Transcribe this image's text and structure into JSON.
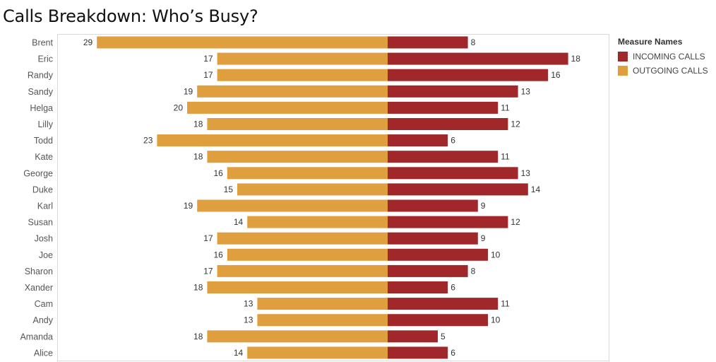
{
  "chart_data": {
    "type": "bar",
    "orientation": "diverging-horizontal",
    "title": "Calls Breakdown: Who’s Busy?",
    "categories": [
      "Brent",
      "Eric",
      "Randy",
      "Sandy",
      "Helga",
      "Lilly",
      "Todd",
      "Kate",
      "George",
      "Duke",
      "Karl",
      "Susan",
      "Josh",
      "Joe",
      "Sharon",
      "Xander",
      "Cam",
      "Andy",
      "Amanda",
      "Alice"
    ],
    "series": [
      {
        "name": "INCOMING CALLS",
        "color": "#a0282a",
        "values": [
          8,
          18,
          16,
          13,
          11,
          12,
          6,
          11,
          13,
          14,
          9,
          12,
          9,
          10,
          8,
          6,
          11,
          10,
          5,
          6
        ]
      },
      {
        "name": "OUTGOING CALLS",
        "color": "#e09f3e",
        "values": [
          29,
          17,
          17,
          19,
          20,
          18,
          23,
          18,
          16,
          15,
          19,
          14,
          17,
          16,
          17,
          18,
          13,
          13,
          18,
          14
        ]
      }
    ],
    "legend": {
      "title": "Measure Names",
      "placement": "right"
    },
    "grid": false
  }
}
